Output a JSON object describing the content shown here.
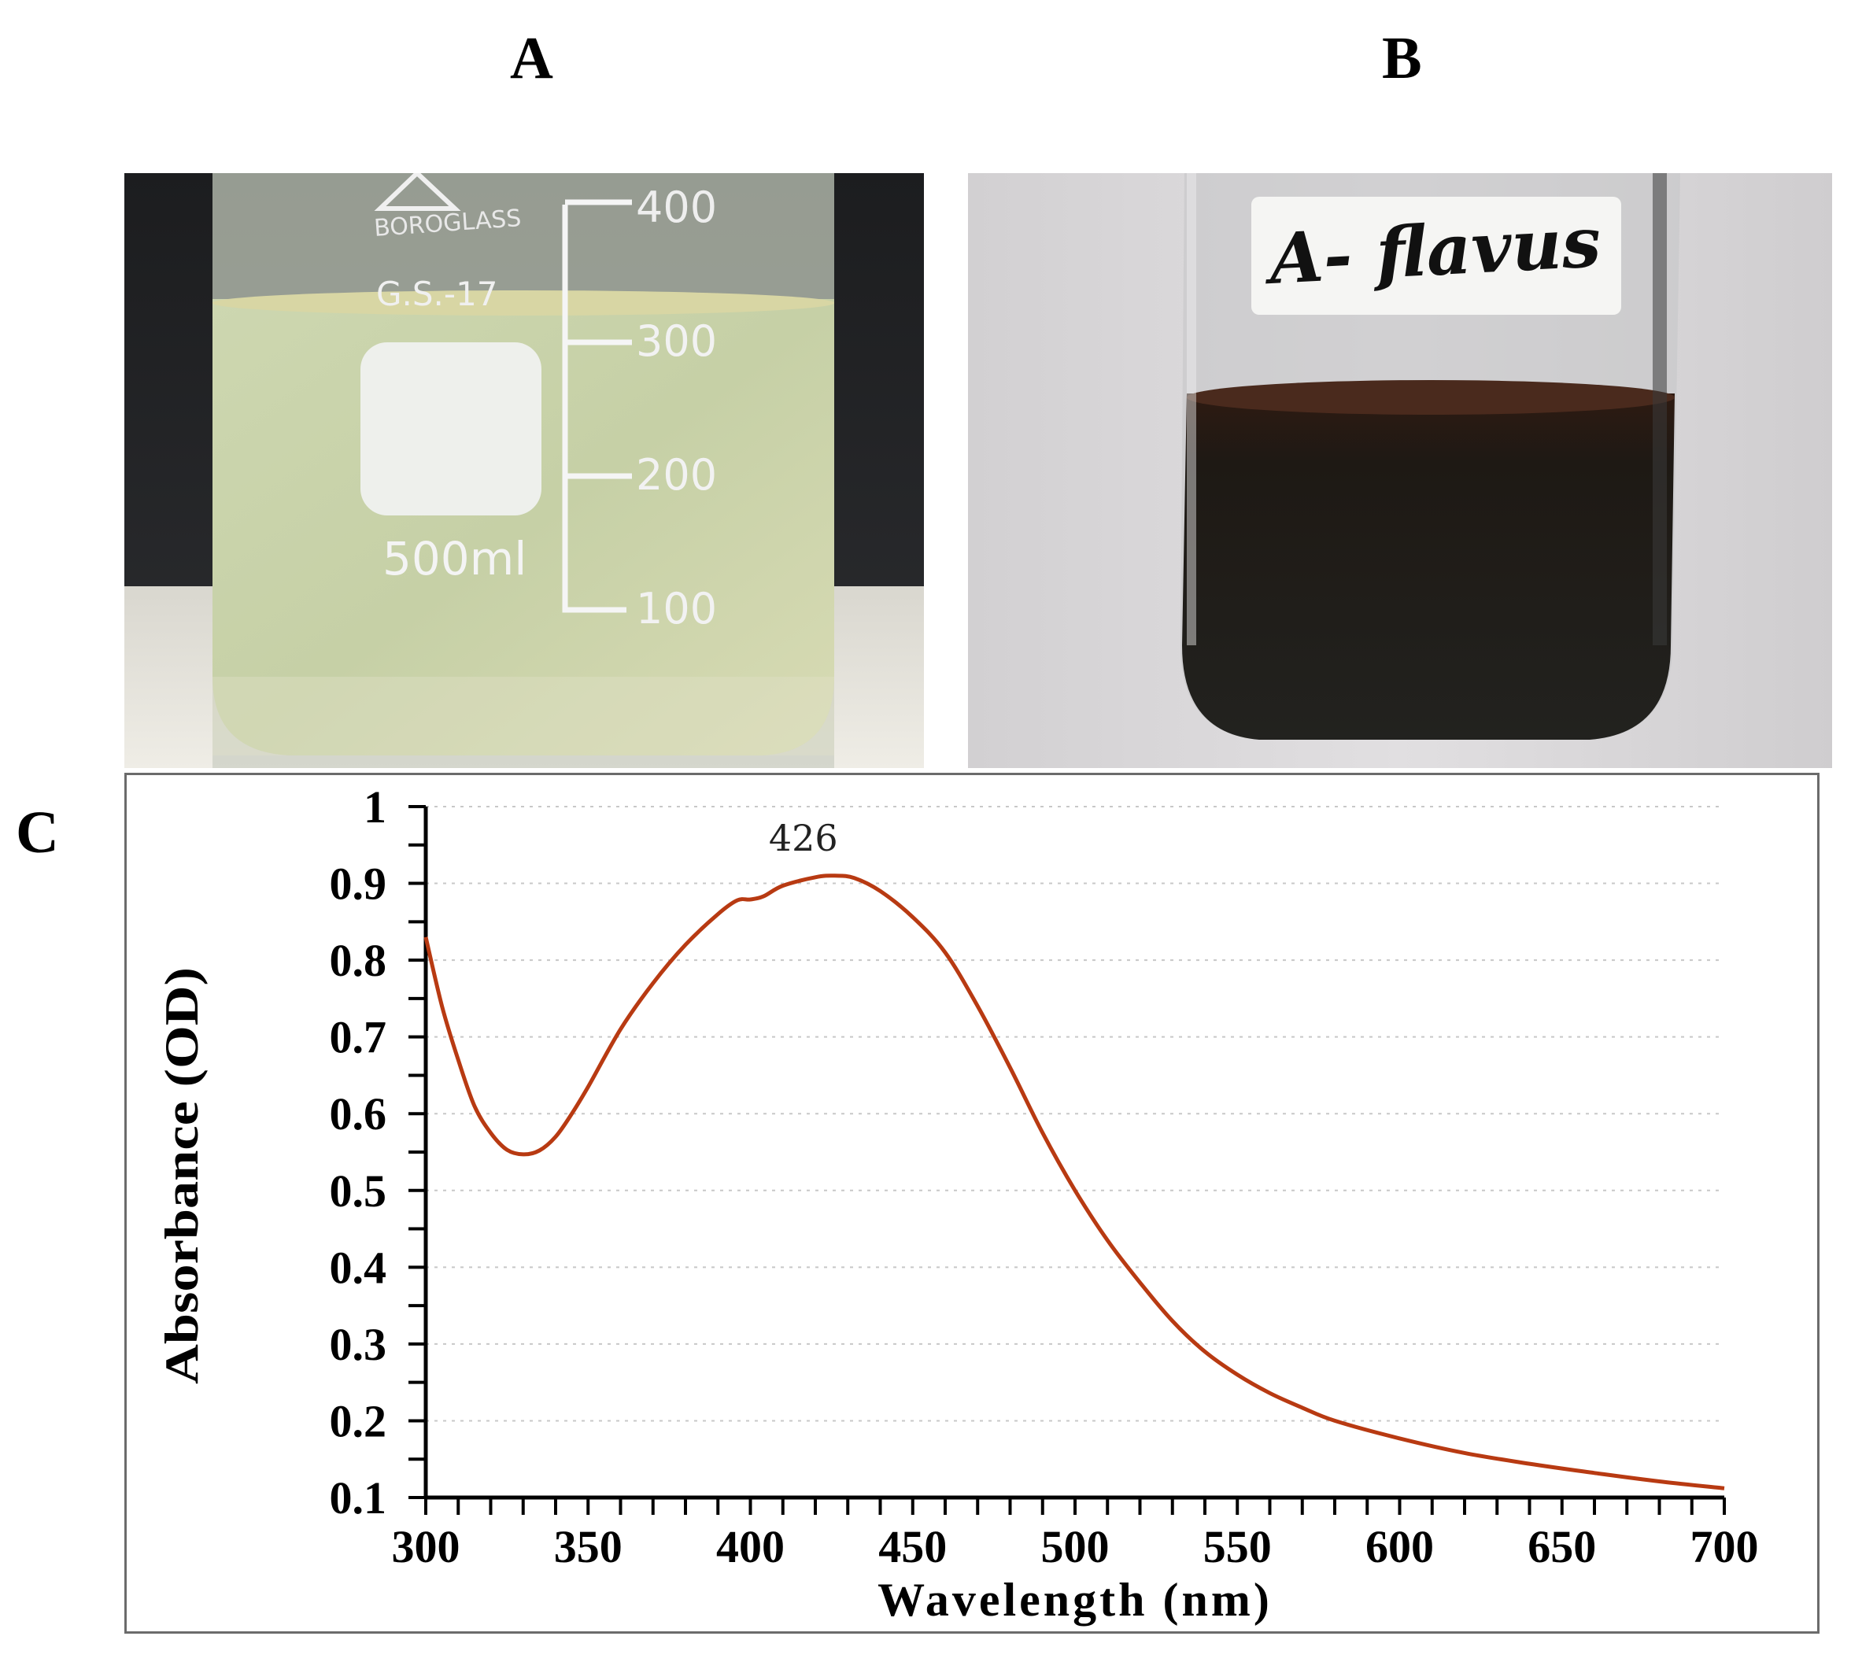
{
  "panels": {
    "a": {
      "letter": "A",
      "beaker_brand": "BOROGLASS",
      "beaker_code": "G.S.-17",
      "beaker_volume": "500ml",
      "grad_labels": [
        "400",
        "300",
        "200",
        "100"
      ]
    },
    "b": {
      "letter": "B",
      "bottle_label": "A- flavus"
    },
    "c": {
      "letter": "C"
    }
  },
  "colors": {
    "curve": "#b83a12",
    "grid": "#c8c8c8",
    "frame": "#6b6b6b"
  },
  "chart_data": {
    "type": "line",
    "xlabel": "Wavelength (nm)",
    "ylabel": "Absorbance (OD)",
    "xlim": [
      300,
      700
    ],
    "ylim": [
      0.1,
      1.0
    ],
    "x_ticks": [
      300,
      350,
      400,
      450,
      500,
      550,
      600,
      650,
      700
    ],
    "y_ticks": [
      "0.1",
      "0.2",
      "0.3",
      "0.4",
      "0.5",
      "0.6",
      "0.7",
      "0.8",
      "0.9",
      "1"
    ],
    "grid": "horizontal-dotted",
    "legend": "none",
    "annotation": {
      "text": "426",
      "x": 426,
      "y": 0.91
    },
    "series": [
      {
        "x": [
          300,
          305,
          310,
          315,
          320,
          325,
          330,
          335,
          340,
          345,
          350,
          360,
          370,
          380,
          390,
          396,
          400,
          404,
          410,
          420,
          426,
          432,
          440,
          450,
          460,
          470,
          480,
          490,
          500,
          510,
          520,
          530,
          540,
          550,
          560,
          570,
          580,
          600,
          620,
          640,
          660,
          680,
          700
        ],
        "y": [
          0.83,
          0.74,
          0.67,
          0.61,
          0.575,
          0.553,
          0.547,
          0.552,
          0.57,
          0.6,
          0.635,
          0.71,
          0.77,
          0.82,
          0.86,
          0.878,
          0.879,
          0.883,
          0.897,
          0.908,
          0.91,
          0.907,
          0.89,
          0.856,
          0.81,
          0.74,
          0.66,
          0.575,
          0.5,
          0.435,
          0.38,
          0.33,
          0.29,
          0.26,
          0.236,
          0.217,
          0.2,
          0.177,
          0.158,
          0.144,
          0.132,
          0.121,
          0.112
        ]
      }
    ]
  }
}
